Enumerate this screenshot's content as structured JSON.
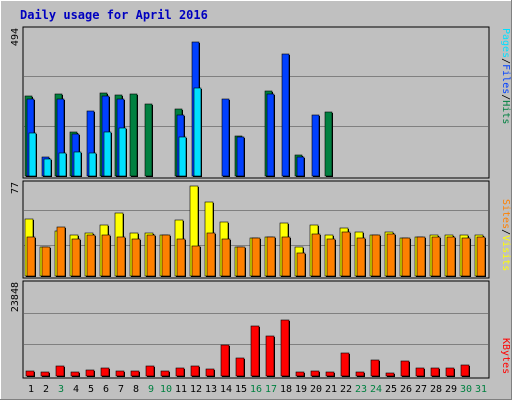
{
  "chart_data": {
    "title": "Daily usage for April 2016",
    "days": [
      "1",
      "2",
      "3",
      "4",
      "5",
      "6",
      "7",
      "8",
      "9",
      "10",
      "11",
      "12",
      "13",
      "14",
      "15",
      "16",
      "17",
      "18",
      "19",
      "20",
      "21",
      "22",
      "23",
      "24",
      "25",
      "26",
      "27",
      "28",
      "29",
      "30",
      "31"
    ],
    "weekend_days": [
      "3",
      "9",
      "10",
      "16",
      "17",
      "23",
      "24",
      "30",
      "31"
    ],
    "colors": {
      "hits": "#008040",
      "files": "#0040ff",
      "pages": "#00e0ff",
      "visits": "#ffff00",
      "sites": "#ff8000",
      "kbytes": "#ff0000",
      "weekday_label": "#000000",
      "weekend_label": "#008040"
    },
    "panels": [
      {
        "type": "bar",
        "max_label": "494",
        "ymax": 494,
        "legend": [
          {
            "text": "Pages",
            "color": "#00e0ff"
          },
          {
            "text": "/",
            "color": "#000000"
          },
          {
            "text": "Files",
            "color": "#0040ff"
          },
          {
            "text": "/",
            "color": "#000000"
          },
          {
            "text": "Hits",
            "color": "#008040"
          }
        ],
        "series": [
          {
            "name": "Hits",
            "values": [
              272,
              0,
              277,
              149,
              0,
              280,
              274,
              277,
              242,
              0,
              228,
              0,
              0,
              0,
              135,
              0,
              289,
              0,
              70,
              0,
              218,
              0,
              0,
              0,
              0,
              0,
              0,
              0,
              0,
              0,
              0
            ]
          },
          {
            "name": "Files",
            "values": [
              259,
              64,
              262,
              143,
              221,
              270,
              262,
              0,
              0,
              0,
              205,
              455,
              0,
              259,
              132,
              0,
              276,
              414,
              65,
              208,
              0,
              0,
              0,
              0,
              0,
              0,
              0,
              0,
              0,
              0,
              0
            ]
          },
          {
            "name": "Pages",
            "values": [
              146,
              57,
              78,
              81,
              78,
              148,
              162,
              0,
              0,
              0,
              131,
              298,
              0,
              0,
              0,
              0,
              0,
              0,
              0,
              0,
              0,
              0,
              0,
              0,
              0,
              0,
              0,
              0,
              0,
              0,
              0
            ]
          }
        ]
      },
      {
        "type": "bar",
        "max_label": "77",
        "ymax": 77,
        "legend": [
          {
            "text": "Sites",
            "color": "#ff8000"
          },
          {
            "text": "/",
            "color": "#000000"
          },
          {
            "text": "Visits",
            "color": "#ffff00"
          }
        ],
        "series": [
          {
            "name": "Visits",
            "values": [
              48,
              24,
              38,
              34,
              36,
              43,
              53,
              36,
              36,
              34,
              47,
              75,
              62,
              45,
              24,
              32,
              33,
              44,
              24,
              43,
              34,
              40,
              37,
              34,
              37,
              32,
              33,
              34,
              34,
              34,
              34
            ]
          },
          {
            "name": "Sites",
            "values": [
              33,
              24,
              41,
              31,
              34,
              34,
              33,
              31,
              34,
              34,
              31,
              25,
              36,
              31,
              24,
              32,
              33,
              33,
              19,
              35,
              31,
              37,
              32,
              34,
              35,
              32,
              33,
              33,
              33,
              32,
              33
            ]
          }
        ]
      },
      {
        "type": "bar",
        "max_label": "23848",
        "ymax": 23848,
        "legend": [
          {
            "text": "KBytes",
            "color": "#ff0000"
          }
        ],
        "series": [
          {
            "name": "KBytes",
            "values": [
              1350,
              1050,
              2500,
              1050,
              1650,
              2200,
              1400,
              1250,
              2500,
              1350,
              2200,
              2500,
              1950,
              8000,
              4600,
              13000,
              10400,
              14600,
              950,
              1400,
              950,
              6000,
              1150,
              4200,
              750,
              4000,
              2200,
              2200,
              2200,
              2800,
              0
            ]
          }
        ]
      }
    ]
  }
}
